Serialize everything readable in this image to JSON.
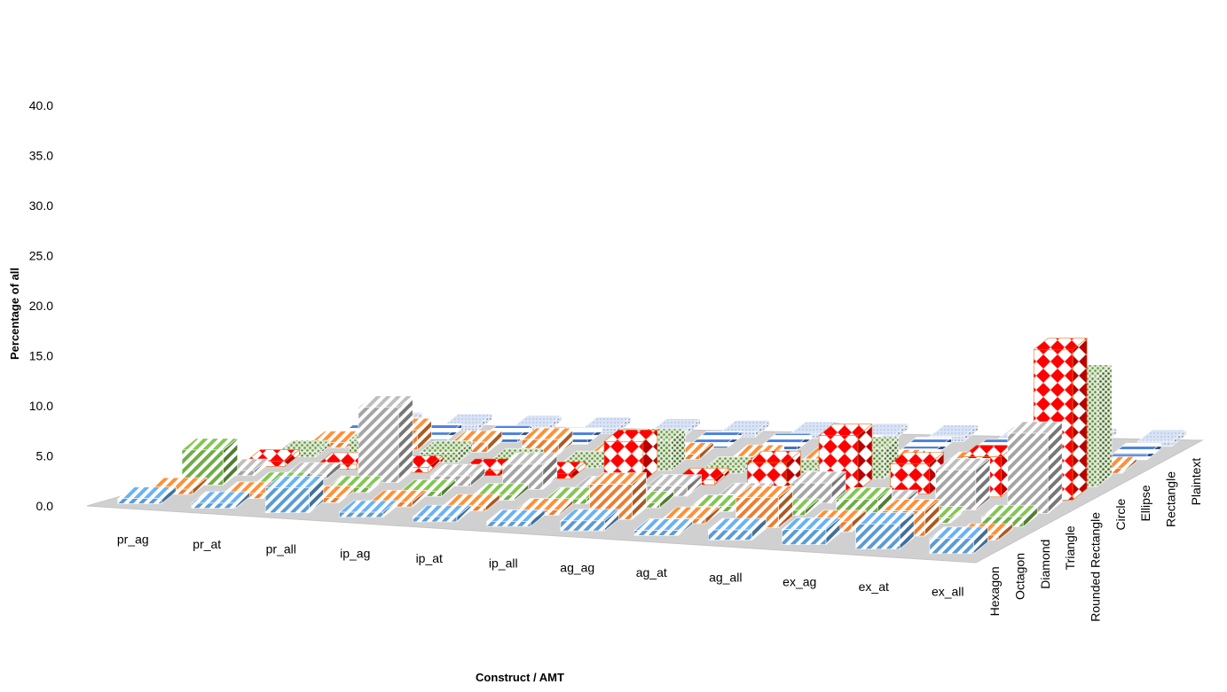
{
  "chart_data": {
    "type": "bar",
    "variant": "3d-column",
    "xlabel": "Construct / AMT",
    "ylabel": "Percentage of all",
    "ylim": [
      0,
      40
    ],
    "yticks": [
      "0.0",
      "5.0",
      "10.0",
      "15.0",
      "20.0",
      "25.0",
      "30.0",
      "35.0",
      "40.0"
    ],
    "categories": [
      "pr_ag",
      "pr_at",
      "pr_all",
      "ip_ag",
      "ip_at",
      "ip_all",
      "ag_ag",
      "ag_at",
      "ag_all",
      "ex_ag",
      "ex_at",
      "ex_all"
    ],
    "grid": false,
    "legend": "none",
    "series": [
      {
        "name": "Hexagon",
        "color": "#5b9bd5",
        "pattern": "diag-stripes",
        "values": [
          0.5,
          0.5,
          2.5,
          0.5,
          0.5,
          0.5,
          1.0,
          0.5,
          1.0,
          1.5,
          2.5,
          1.5
        ]
      },
      {
        "name": "Octagon",
        "color": "#ed7d31",
        "pattern": "diag-stripes",
        "values": [
          0.5,
          0.5,
          0.5,
          0.5,
          0.5,
          0.5,
          3.5,
          0.5,
          3.0,
          1.0,
          2.5,
          0.5
        ]
      },
      {
        "name": "Diamond",
        "color": "#70ad47",
        "pattern": "diag-stripes",
        "values": [
          3.5,
          0.5,
          0.5,
          0.5,
          0.5,
          0.5,
          0.5,
          0.5,
          0.5,
          2.0,
          0.5,
          1.0
        ]
      },
      {
        "name": "Triangle",
        "color": "#a5a5a5",
        "pattern": "diag-stripes",
        "values": [
          0.5,
          0.5,
          7.5,
          1.0,
          2.5,
          0.5,
          1.0,
          0.5,
          2.0,
          0.5,
          4.0,
          8.0
        ]
      },
      {
        "name": "Rounded Rectangle",
        "color": "#ff0000",
        "pattern": "diamonds",
        "values": [
          0.5,
          0.5,
          0.5,
          0.5,
          0.5,
          4.0,
          0.5,
          2.5,
          5.5,
          3.0,
          4.0,
          15.0
        ]
      },
      {
        "name": "Circle",
        "color": "#548235",
        "pattern": "dots",
        "values": [
          0.5,
          2.0,
          1.0,
          0.5,
          0.5,
          3.0,
          0.5,
          0.5,
          3.0,
          0.5,
          0.5,
          11.0
        ]
      },
      {
        "name": "Ellipse",
        "color": "#ed7d31",
        "pattern": "diag-stripes",
        "values": [
          0.5,
          2.0,
          1.0,
          1.5,
          0.5,
          0.5,
          0.5,
          0.5,
          0.5,
          0.5,
          0.5,
          0.5
        ]
      },
      {
        "name": "Rectangle",
        "color": "#4472c4",
        "pattern": "horiz-lines",
        "values": [
          0.5,
          0.5,
          0.5,
          0.5,
          0.5,
          0.5,
          0.5,
          0.5,
          0.5,
          0.5,
          0.5,
          0.5
        ]
      },
      {
        "name": "Plaintext",
        "color": "#8faadc",
        "pattern": "fine-dots",
        "values": [
          0.5,
          0.5,
          0.5,
          0.5,
          0.5,
          0.5,
          0.5,
          0.5,
          0.5,
          0.5,
          0.5,
          0.5
        ]
      }
    ]
  }
}
